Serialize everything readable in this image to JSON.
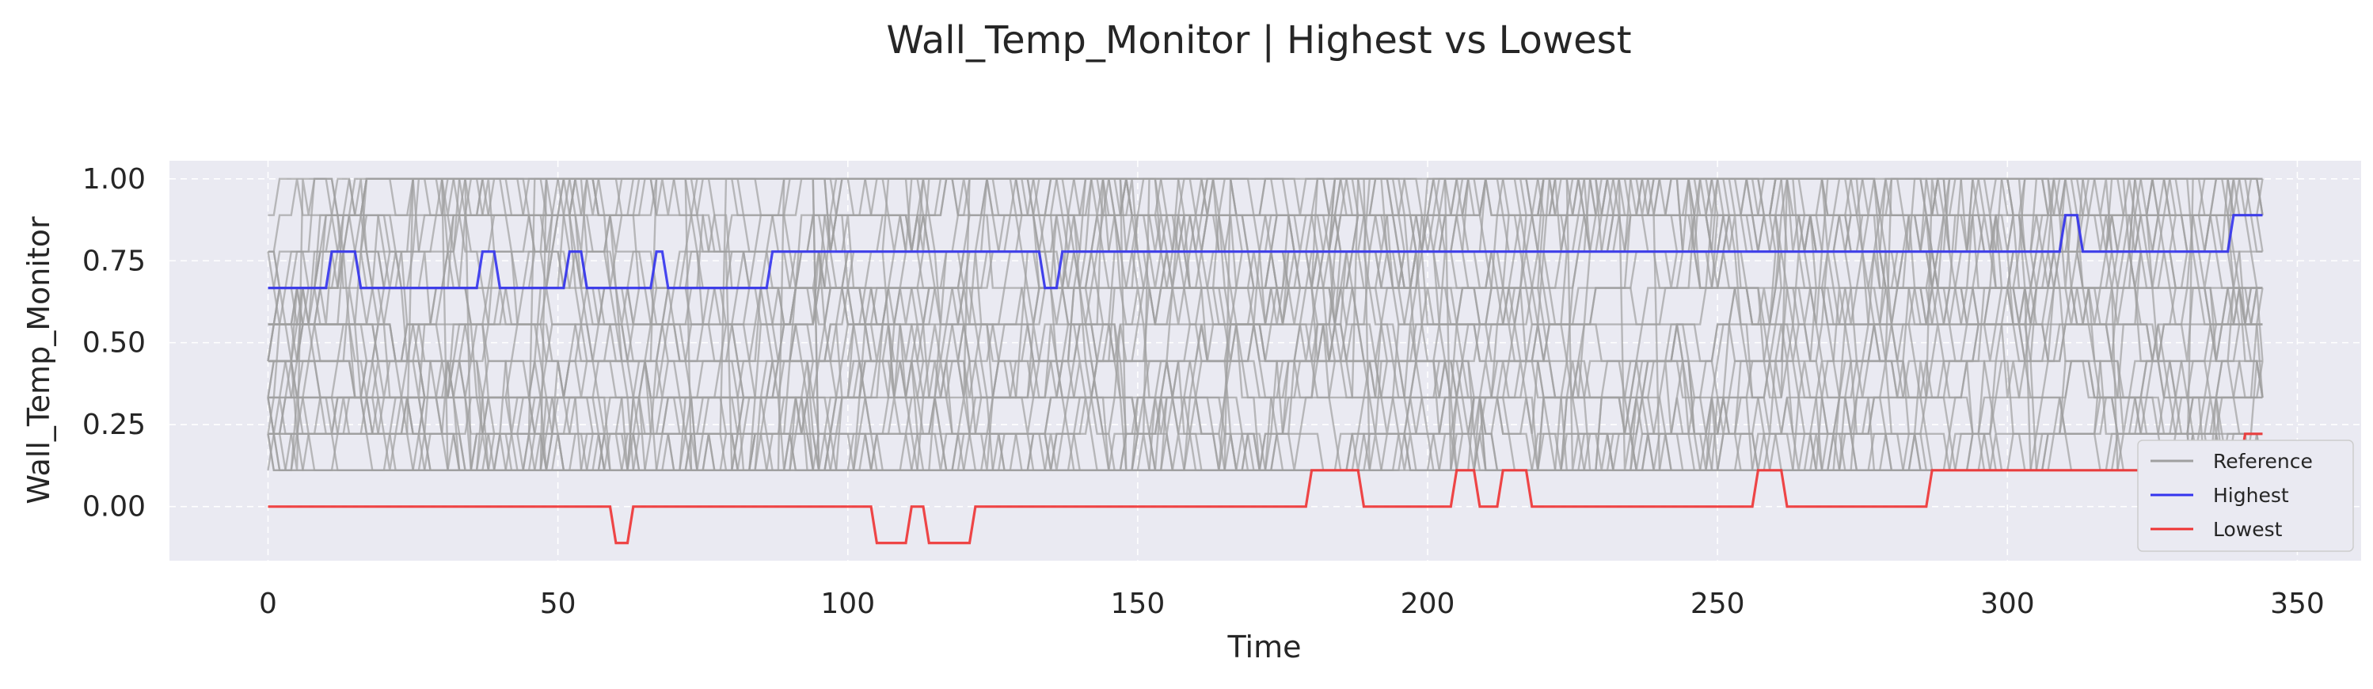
{
  "chart_data": {
    "type": "line",
    "title": "Wall_Temp_Monitor | Highest vs Lowest",
    "xlabel": "Time",
    "ylabel": "Wall_Temp_Monitor",
    "xlim": [
      -17,
      361
    ],
    "ylim": [
      -0.165,
      1.055
    ],
    "xticks": [
      0,
      50,
      100,
      150,
      200,
      250,
      300,
      350
    ],
    "yticks": [
      0.0,
      0.25,
      0.5,
      0.75,
      1.0
    ],
    "ytick_labels": [
      "0.00",
      "0.25",
      "0.50",
      "0.75",
      "1.00"
    ],
    "grid": true,
    "legend_position": "lower-right",
    "colors": {
      "background": "#eaeaf2",
      "grid": "#ffffff",
      "reference": "#a0a0a0",
      "highest": "#3333ee",
      "lowest": "#ee3333"
    },
    "reference": {
      "name": "Reference",
      "count": 40,
      "levels": [
        0.0,
        0.111,
        0.222,
        0.333,
        0.444,
        0.556,
        0.667,
        0.778,
        0.889,
        1.0
      ],
      "length": 345
    },
    "series": [
      {
        "name": "Highest",
        "points": [
          [
            0,
            0.667
          ],
          [
            10,
            0.667
          ],
          [
            11,
            0.778
          ],
          [
            15,
            0.778
          ],
          [
            16,
            0.667
          ],
          [
            36,
            0.667
          ],
          [
            37,
            0.778
          ],
          [
            39,
            0.778
          ],
          [
            40,
            0.667
          ],
          [
            51,
            0.667
          ],
          [
            52,
            0.778
          ],
          [
            54,
            0.778
          ],
          [
            55,
            0.667
          ],
          [
            66,
            0.667
          ],
          [
            67,
            0.778
          ],
          [
            68,
            0.778
          ],
          [
            69,
            0.667
          ],
          [
            86,
            0.667
          ],
          [
            87,
            0.778
          ],
          [
            133,
            0.778
          ],
          [
            134,
            0.667
          ],
          [
            136,
            0.667
          ],
          [
            137,
            0.778
          ],
          [
            309,
            0.778
          ],
          [
            310,
            0.889
          ],
          [
            312,
            0.889
          ],
          [
            313,
            0.778
          ],
          [
            338,
            0.778
          ],
          [
            339,
            0.889
          ],
          [
            344,
            0.889
          ]
        ]
      },
      {
        "name": "Lowest",
        "points": [
          [
            0,
            0.0
          ],
          [
            59,
            0.0
          ],
          [
            60,
            -0.111
          ],
          [
            62,
            -0.111
          ],
          [
            63,
            0.0
          ],
          [
            104,
            0.0
          ],
          [
            105,
            -0.111
          ],
          [
            110,
            -0.111
          ],
          [
            111,
            0.0
          ],
          [
            113,
            0.0
          ],
          [
            114,
            -0.111
          ],
          [
            121,
            -0.111
          ],
          [
            122,
            0.0
          ],
          [
            179,
            0.0
          ],
          [
            180,
            0.111
          ],
          [
            188,
            0.111
          ],
          [
            189,
            0.0
          ],
          [
            204,
            0.0
          ],
          [
            205,
            0.111
          ],
          [
            208,
            0.111
          ],
          [
            209,
            0.0
          ],
          [
            212,
            0.0
          ],
          [
            213,
            0.111
          ],
          [
            217,
            0.111
          ],
          [
            218,
            0.0
          ],
          [
            256,
            0.0
          ],
          [
            257,
            0.111
          ],
          [
            261,
            0.111
          ],
          [
            262,
            0.0
          ],
          [
            286,
            0.0
          ],
          [
            287,
            0.111
          ],
          [
            340,
            0.111
          ],
          [
            341,
            0.222
          ],
          [
            344,
            0.222
          ]
        ]
      }
    ]
  }
}
